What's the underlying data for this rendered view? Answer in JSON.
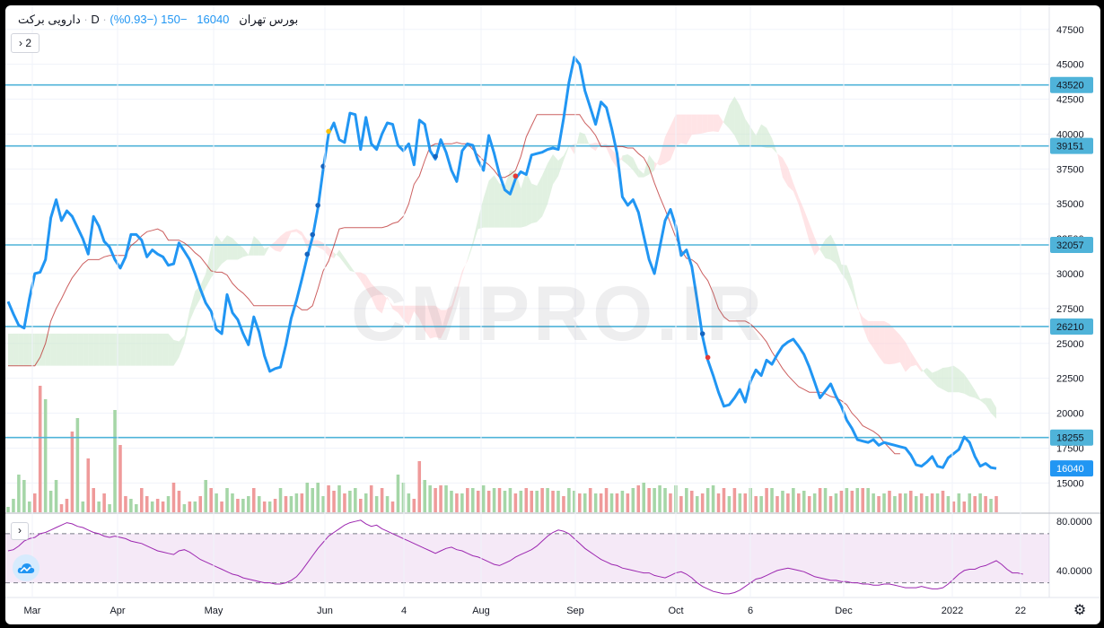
{
  "header": {
    "symbol": "دارویی برکت",
    "interval": "D",
    "exchange": "بورس تهران",
    "price": "16040",
    "change": "−150 (−0.93%)",
    "collapse_label": "2"
  },
  "watermark": "CMPRO.IR",
  "colors": {
    "price_line": "#2196f3",
    "hline": "#4fb3d9",
    "kumo_bull": "#c8e6c9",
    "kumo_bear": "#ffcdd2",
    "kijun": "#b71c1c",
    "rsi": "#9c27b0",
    "vol_up": "#a5d6a7",
    "vol_down": "#ef9a9a"
  },
  "chart_data": [
    {
      "type": "line",
      "title": "",
      "x_ticks": [
        "Mar",
        "Apr",
        "May",
        "Jun",
        "4",
        "Aug",
        "Sep",
        "Oct",
        "6",
        "Dec",
        "2022",
        "22"
      ],
      "y_ticks": [
        15000,
        17500,
        20000,
        22500,
        25000,
        27500,
        30000,
        32500,
        35000,
        37500,
        40000,
        42500,
        45000,
        47500
      ],
      "ylim": [
        12900,
        48900
      ],
      "price_label": 16040,
      "horizontal_levels": [
        43520,
        39151,
        32057,
        26210,
        18255
      ],
      "series": [
        {
          "values": [
            28000,
            27100,
            26300,
            26100,
            28200,
            30000,
            30100,
            31000,
            34000,
            35300,
            33800,
            34500,
            34100,
            33300,
            32500,
            31400,
            34100,
            33400,
            32300,
            31900,
            31000,
            30400,
            31200,
            32800,
            32800,
            32400,
            31200,
            31700,
            31400,
            31200,
            30600,
            30700,
            32200,
            31600,
            31000,
            30000,
            28900,
            27900,
            27300,
            26000,
            25700,
            28500,
            27200,
            26700,
            25700,
            24900,
            26900,
            25800,
            24100,
            23000,
            23200,
            23300,
            24900,
            26800,
            28100,
            29600,
            31200,
            32600,
            34700,
            37500,
            40000,
            40800,
            39600,
            39400,
            41500,
            41400,
            38900,
            41200,
            39300,
            38900,
            40000,
            40800,
            40700,
            39200,
            38800,
            39300,
            37800,
            41000,
            40700,
            38800,
            38200,
            39600,
            38700,
            37400,
            36600,
            38800,
            39300,
            39200,
            38100,
            37400,
            39900,
            38600,
            37100,
            36000,
            35700,
            36800,
            37300,
            37100,
            38500,
            38600,
            38700,
            38900,
            39000,
            38900,
            41100,
            43700,
            45500,
            45000,
            43100,
            41900,
            40700,
            42300,
            41900,
            40400,
            38600,
            35500,
            34900,
            35300,
            34400,
            32700,
            31000,
            30000,
            31900,
            33800,
            34600,
            33400,
            31300,
            31700,
            30500,
            28100,
            25500,
            23800,
            22700,
            21500,
            20500,
            20600,
            21100,
            21700,
            20800,
            22300,
            23100,
            22700,
            23800,
            23500,
            24200,
            24800,
            25100,
            25300,
            24800,
            24200,
            23300,
            22200,
            21100,
            21600,
            22100,
            21200,
            20500,
            19500,
            18900,
            18100,
            18000,
            17900,
            18100,
            17700,
            17900,
            17800,
            17700,
            17600,
            17500,
            17000,
            16300,
            16200,
            16500,
            16900,
            16200,
            16100,
            16800,
            17100,
            17400,
            18300,
            17900,
            16900,
            16200,
            16400,
            16100,
            16040
          ],
          "name": ""
        },
        {
          "values": [
            23400,
            23400,
            23400,
            23400,
            23400,
            23400,
            24000,
            25000,
            26600,
            27500,
            28200,
            29000,
            29700,
            30200,
            30700,
            31000,
            31000,
            31000,
            31200,
            31300,
            31300,
            31300,
            31300,
            32000,
            32300,
            32700,
            33000,
            33100,
            33200,
            33000,
            32400,
            32400,
            32400,
            32200,
            31900,
            31500,
            31200,
            30700,
            30200,
            30100,
            30100,
            29900,
            29300,
            28900,
            28600,
            28200,
            27700,
            27700,
            27700,
            27700,
            27700,
            27700,
            27700,
            27700,
            27700,
            27400,
            27400,
            27700,
            28900,
            30200,
            30900,
            32000,
            33200,
            33300,
            33300,
            33300,
            33300,
            33300,
            33300,
            33300,
            33300,
            33400,
            33600,
            33700,
            34100,
            35000,
            36400,
            37000,
            38100,
            39100,
            39300,
            39300,
            39300,
            39300,
            39400,
            39300,
            39300,
            38900,
            38500,
            38100,
            37800,
            37400,
            36900,
            36900,
            37100,
            37400,
            38400,
            39800,
            40600,
            41400,
            41400,
            41400,
            41400,
            41400,
            41400,
            41400,
            41400,
            41400,
            40800,
            40400,
            39900,
            39100,
            39100,
            39100,
            39100,
            39100,
            39000,
            39000,
            38600,
            38300,
            37600,
            36500,
            35500,
            34600,
            33600,
            32600,
            31700,
            31100,
            31000,
            30700,
            30000,
            29500,
            28600,
            27500,
            26900,
            26600,
            26600,
            26600,
            26600,
            26400,
            26000,
            25600,
            25100,
            24400,
            23800,
            23200,
            22700,
            22300,
            21900,
            21700,
            21500,
            21500,
            21500,
            21400,
            21200,
            21100,
            20900,
            20600,
            20000,
            19600,
            19100,
            18900,
            18700,
            18400,
            17900,
            17500,
            17100,
            17100
          ],
          "name": ""
        }
      ]
    },
    {
      "type": "bar",
      "title": "",
      "values": [
        0.02,
        0.05,
        0.14,
        0.12,
        0.04,
        0.07,
        0.47,
        0.42,
        0.08,
        0.12,
        0.03,
        0.05,
        0.3,
        0.35,
        0.04,
        0.2,
        0.09,
        0.04,
        0.07,
        0.03,
        0.38,
        0.25,
        0.06,
        0.05,
        0.03,
        0.09,
        0.06,
        0.04,
        0.05,
        0.04,
        0.06,
        0.11,
        0.08,
        0.03,
        0.04,
        0.04,
        0.06,
        0.12,
        0.09,
        0.07,
        0.04,
        0.09,
        0.07,
        0.05,
        0.05,
        0.06,
        0.09,
        0.06,
        0.04,
        0.04,
        0.05,
        0.09,
        0.06,
        0.06,
        0.07,
        0.07,
        0.11,
        0.09,
        0.11,
        0.06,
        0.1,
        0.08,
        0.1,
        0.07,
        0.08,
        0.09,
        0.05,
        0.07,
        0.1,
        0.06,
        0.09,
        0.06,
        0.04,
        0.14,
        0.11,
        0.07,
        0.05,
        0.19,
        0.12,
        0.1,
        0.09,
        0.1,
        0.1,
        0.08,
        0.07,
        0.07,
        0.09,
        0.09,
        0.08,
        0.1,
        0.08,
        0.09,
        0.09,
        0.08,
        0.09,
        0.07,
        0.08,
        0.09,
        0.08,
        0.08,
        0.09,
        0.09,
        0.08,
        0.08,
        0.06,
        0.09,
        0.08,
        0.07,
        0.07,
        0.09,
        0.07,
        0.07,
        0.09,
        0.07,
        0.07,
        0.08,
        0.07,
        0.09,
        0.1,
        0.11,
        0.09,
        0.09,
        0.1,
        0.09,
        0.07,
        0.1,
        0.06,
        0.09,
        0.08,
        0.06,
        0.07,
        0.09,
        0.1,
        0.07,
        0.09,
        0.06,
        0.09,
        0.07,
        0.07,
        0.09,
        0.06,
        0.06,
        0.09,
        0.09,
        0.06,
        0.08,
        0.07,
        0.09,
        0.07,
        0.08,
        0.06,
        0.07,
        0.09,
        0.09,
        0.06,
        0.07,
        0.08,
        0.09,
        0.08,
        0.09,
        0.09,
        0.09,
        0.07,
        0.06,
        0.07,
        0.08,
        0.06,
        0.07,
        0.07,
        0.08,
        0.06,
        0.07,
        0.06,
        0.07,
        0.07,
        0.08,
        0.06,
        0.04,
        0.07,
        0.04,
        0.07,
        0.06,
        0.07,
        0.06,
        0.05,
        0.06,
        0.05,
        0.04,
        0.05,
        0.04,
        0.04,
        0.05,
        0.03,
        0.04,
        0.06,
        0.05,
        0.03,
        0.03,
        0.04,
        0.03,
        0.02,
        0.04,
        0.04
      ],
      "up": [
        1,
        1,
        1,
        1,
        1,
        0,
        0,
        1,
        1,
        1,
        0,
        0,
        0,
        1,
        1,
        0,
        0,
        1,
        0,
        1,
        1,
        0,
        0,
        1,
        1,
        0,
        0,
        1,
        0,
        0,
        1,
        0,
        0,
        1,
        0,
        1,
        0,
        1,
        0,
        1,
        0,
        1,
        1,
        0,
        1,
        1,
        0,
        1,
        0,
        1,
        0,
        1,
        0,
        1,
        1,
        0,
        1,
        1,
        1,
        1,
        0,
        0,
        1,
        0,
        1,
        1,
        0,
        1,
        0,
        1,
        0,
        1,
        0,
        1,
        1,
        1,
        0,
        0,
        1,
        1,
        0,
        0,
        1,
        1,
        0,
        1,
        0,
        1,
        0,
        1,
        0,
        1,
        0,
        1,
        1,
        0,
        1,
        0,
        0,
        1,
        0,
        1,
        0,
        1,
        0,
        1,
        1,
        0,
        1,
        0,
        1,
        0,
        0,
        1,
        0,
        1,
        0,
        1,
        0,
        1,
        0,
        1,
        1,
        1,
        0,
        1,
        0,
        1,
        0,
        1,
        0,
        1,
        1,
        0,
        0,
        1,
        0,
        1,
        0,
        1,
        0,
        1,
        0,
        1,
        0,
        1,
        0,
        1,
        0,
        1,
        0,
        1,
        0,
        1,
        0,
        1,
        0,
        1,
        0,
        1,
        0,
        1,
        1,
        0,
        1,
        0,
        1,
        0,
        1,
        0,
        1,
        0,
        1,
        0,
        1,
        0,
        1,
        0,
        1,
        0,
        1,
        0,
        1,
        0,
        1,
        0,
        1,
        0,
        1,
        0,
        1,
        0,
        1,
        0,
        0,
        1,
        0,
        1,
        0,
        1,
        0,
        0,
        1,
        0
      ]
    },
    {
      "type": "line",
      "title": "",
      "y_ticks": [
        40,
        80
      ],
      "y_tick_labels": [
        "40.0000",
        "80.0000"
      ],
      "ylim": [
        18,
        86
      ],
      "band": [
        30,
        70
      ],
      "series": [
        {
          "values": [
            56,
            57,
            60,
            64,
            66,
            67,
            70,
            71,
            73,
            75,
            77,
            79,
            78,
            76,
            75,
            73,
            71,
            70,
            68,
            67,
            68,
            67,
            66,
            64,
            63,
            62,
            60,
            58,
            56,
            55,
            54,
            53,
            56,
            57,
            55,
            52,
            49,
            47,
            45,
            43,
            41,
            39,
            37,
            36,
            34,
            33,
            32,
            31,
            30,
            30,
            29,
            29,
            30,
            32,
            35,
            40,
            46,
            52,
            58,
            63,
            68,
            71,
            74,
            77,
            79,
            80,
            81,
            78,
            76,
            77,
            74,
            72,
            70,
            68,
            66,
            64,
            62,
            60,
            58,
            56,
            54,
            56,
            58,
            59,
            57,
            56,
            54,
            52,
            51,
            49,
            47,
            45,
            44,
            46,
            48,
            51,
            53,
            55,
            57,
            60,
            64,
            68,
            71,
            73,
            72,
            70,
            66,
            62,
            58,
            55,
            52,
            49,
            47,
            45,
            44,
            42,
            41,
            40,
            39,
            38,
            38,
            36,
            35,
            34,
            36,
            38,
            39,
            37,
            34,
            30,
            27,
            25,
            23,
            22,
            21,
            21,
            22,
            24,
            27,
            30,
            33,
            34,
            36,
            38,
            40,
            41,
            42,
            41,
            40,
            39,
            37,
            35,
            34,
            33,
            32,
            32,
            31,
            31,
            30,
            30,
            29,
            29,
            28,
            28,
            29,
            29,
            28,
            27,
            26,
            26,
            26,
            27,
            26,
            25,
            25,
            26,
            29,
            33,
            37,
            40,
            41,
            41,
            43,
            44,
            46,
            48,
            45,
            41,
            38,
            38,
            37
          ]
        }
      ]
    }
  ],
  "axis": {
    "price_labels": [
      "47500",
      "45000",
      "42500",
      "40000",
      "37500",
      "35000",
      "32500",
      "30000",
      "27500",
      "25000",
      "22500",
      "20000",
      "17500",
      "15000"
    ]
  }
}
